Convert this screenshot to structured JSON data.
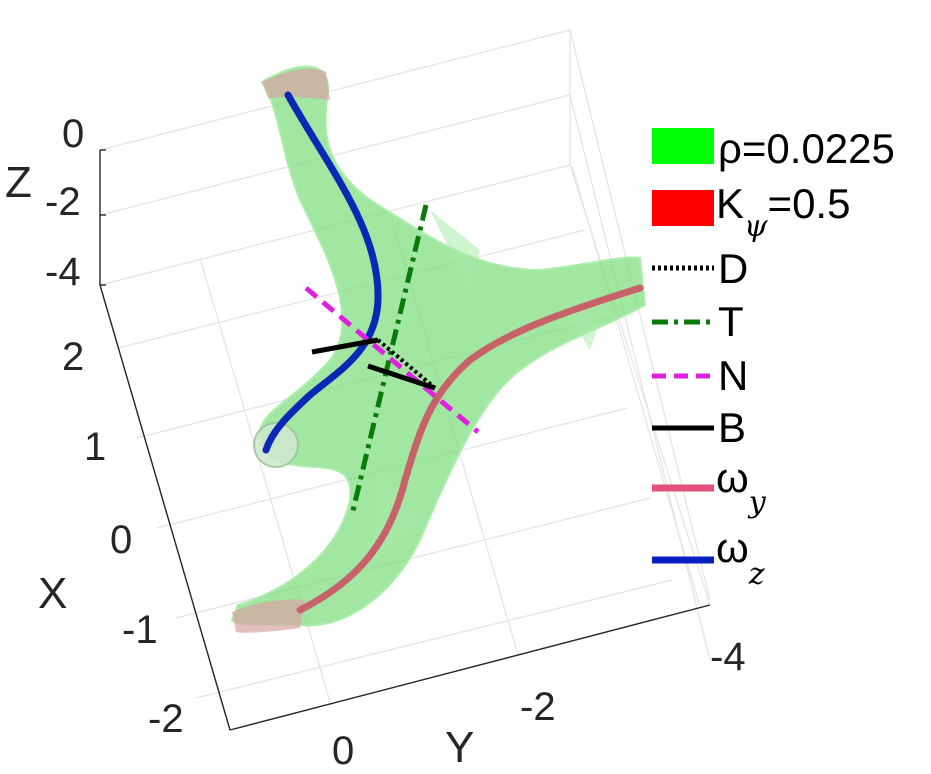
{
  "chart_data": {
    "type": "3d-surface",
    "xlabel": "X",
    "ylabel": "Y",
    "zlabel": "Z",
    "x_ticks": [
      "2",
      "1",
      "0",
      "-1",
      "-2"
    ],
    "y_ticks": [
      "0",
      "-2",
      "-4"
    ],
    "z_ticks": [
      "0",
      "-2",
      "-4"
    ],
    "grid": true,
    "legend_position": "right",
    "legend": [
      {
        "key": "rho",
        "text": "ρ=0.0225",
        "style": "patch",
        "color": "#00ff00"
      },
      {
        "key": "kpsi",
        "text_main": "K",
        "text_sub": "ψ",
        "text_tail": "=0.5",
        "style": "patch",
        "color": "#ff0000"
      },
      {
        "key": "D",
        "text": "D",
        "style": "dotted",
        "color": "#000000"
      },
      {
        "key": "T",
        "text": "T",
        "style": "dashdot",
        "color": "#0a7a0a"
      },
      {
        "key": "N",
        "text": "N",
        "style": "dashed",
        "color": "#e020e0"
      },
      {
        "key": "B",
        "text": "B",
        "style": "solid",
        "color": "#000000"
      },
      {
        "key": "wy",
        "text_main": "ω",
        "text_sub": "y",
        "style": "solid",
        "color": "#e0507a"
      },
      {
        "key": "wz",
        "text_main": "ω",
        "text_sub": "z",
        "style": "solid",
        "color": "#0820c0"
      }
    ],
    "colors": {
      "surface": "#7ddc7d",
      "surface_edge": "#9ae89a",
      "wz_curve": "#0a28b4",
      "wy_curve": "#c8626a"
    }
  }
}
